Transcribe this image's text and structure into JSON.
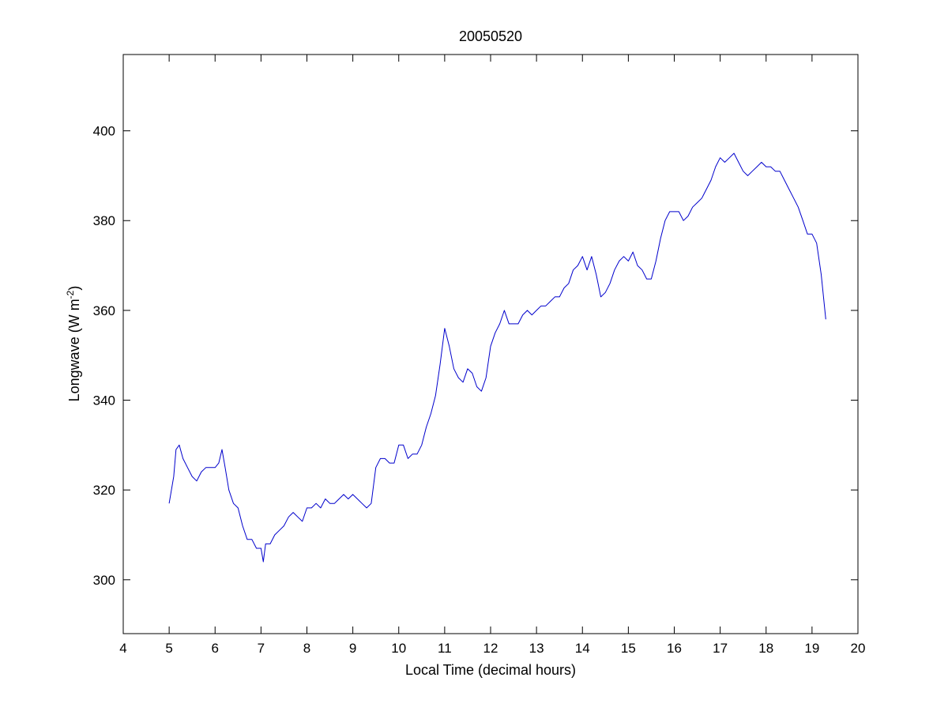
{
  "chart_data": {
    "type": "line",
    "title": "20050520",
    "xlabel": "Local Time (decimal hours)",
    "ylabel": {
      "prefix": "Longwave (W m",
      "superscript": "-2",
      "suffix": ")"
    },
    "xlim": [
      4,
      20
    ],
    "ylim": [
      288,
      417
    ],
    "xticks": [
      4,
      5,
      6,
      7,
      8,
      9,
      10,
      11,
      12,
      13,
      14,
      15,
      16,
      17,
      18,
      19,
      20
    ],
    "yticks": [
      300,
      320,
      340,
      360,
      380,
      400
    ],
    "grid": false,
    "series": [
      {
        "color": "#0000cc",
        "x": [
          5.0,
          5.1,
          5.15,
          5.22,
          5.3,
          5.4,
          5.5,
          5.6,
          5.7,
          5.8,
          5.9,
          6.0,
          6.08,
          6.15,
          6.22,
          6.3,
          6.4,
          6.5,
          6.6,
          6.7,
          6.8,
          6.9,
          7.0,
          7.05,
          7.1,
          7.2,
          7.3,
          7.4,
          7.5,
          7.6,
          7.7,
          7.8,
          7.9,
          8.0,
          8.1,
          8.2,
          8.3,
          8.4,
          8.5,
          8.6,
          8.7,
          8.8,
          8.9,
          9.0,
          9.1,
          9.2,
          9.3,
          9.4,
          9.5,
          9.6,
          9.7,
          9.8,
          9.9,
          10.0,
          10.1,
          10.2,
          10.3,
          10.4,
          10.5,
          10.6,
          10.7,
          10.8,
          10.9,
          11.0,
          11.1,
          11.2,
          11.3,
          11.4,
          11.5,
          11.6,
          11.7,
          11.8,
          11.9,
          12.0,
          12.1,
          12.2,
          12.3,
          12.4,
          12.5,
          12.6,
          12.7,
          12.8,
          12.9,
          13.0,
          13.1,
          13.2,
          13.3,
          13.4,
          13.5,
          13.6,
          13.7,
          13.8,
          13.9,
          14.0,
          14.1,
          14.2,
          14.3,
          14.4,
          14.5,
          14.6,
          14.7,
          14.8,
          14.9,
          15.0,
          15.1,
          15.2,
          15.3,
          15.4,
          15.5,
          15.6,
          15.7,
          15.8,
          15.9,
          16.0,
          16.1,
          16.2,
          16.3,
          16.4,
          16.5,
          16.6,
          16.7,
          16.8,
          16.9,
          17.0,
          17.1,
          17.2,
          17.3,
          17.4,
          17.5,
          17.6,
          17.7,
          17.8,
          17.9,
          18.0,
          18.1,
          18.2,
          18.3,
          18.4,
          18.5,
          18.6,
          18.7,
          18.8,
          18.9,
          19.0,
          19.1,
          19.2,
          19.3
        ],
        "y": [
          317,
          323,
          329,
          330,
          327,
          325,
          323,
          322,
          324,
          325,
          325,
          325,
          326,
          329,
          325,
          320,
          317,
          316,
          312,
          309,
          309,
          307,
          307,
          304,
          308,
          308,
          310,
          311,
          312,
          314,
          315,
          314,
          313,
          316,
          316,
          317,
          316,
          318,
          317,
          317,
          318,
          319,
          318,
          319,
          318,
          317,
          316,
          317,
          325,
          327,
          327,
          326,
          326,
          330,
          330,
          327,
          328,
          328,
          330,
          334,
          337,
          341,
          348,
          356,
          352,
          347,
          345,
          344,
          347,
          346,
          343,
          342,
          345,
          352,
          355,
          357,
          360,
          357,
          357,
          357,
          359,
          360,
          359,
          360,
          361,
          361,
          362,
          363,
          363,
          365,
          366,
          369,
          370,
          372,
          369,
          372,
          368,
          363,
          364,
          366,
          369,
          371,
          372,
          371,
          373,
          370,
          369,
          367,
          367,
          371,
          376,
          380,
          382,
          382,
          382,
          380,
          381,
          383,
          384,
          385,
          387,
          389,
          392,
          394,
          393,
          394,
          395,
          393,
          391,
          390,
          391,
          392,
          393,
          392,
          392,
          391,
          391,
          389,
          387,
          385,
          383,
          380,
          377,
          377,
          375,
          368,
          358
        ]
      }
    ]
  }
}
